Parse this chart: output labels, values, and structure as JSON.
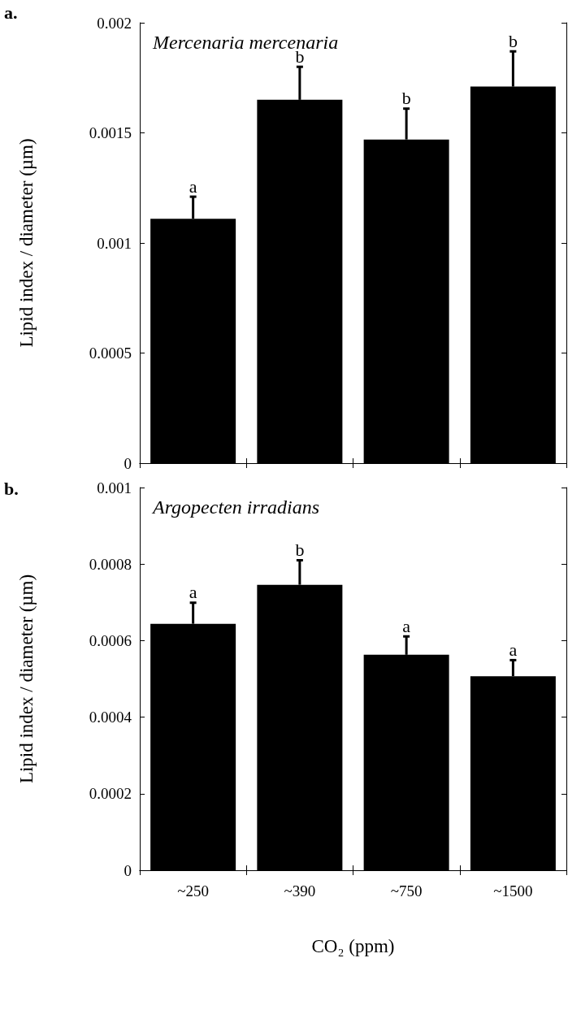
{
  "chart_data": [
    {
      "type": "bar",
      "title": "Mercenaria mercenaria",
      "ylabel": "Lipid index / diameter (µm)",
      "categories": [
        "~250",
        "~390",
        "~750",
        "~1500"
      ],
      "tick_labels": "y",
      "series": [
        {
          "color": "#000000",
          "values": [
            0.00111,
            0.00165,
            0.00147,
            0.00171
          ],
          "errors": [
            0.0001,
            0.00015,
            0.00014,
            0.00016
          ]
        }
      ],
      "ylim": [
        0,
        0.002
      ],
      "yticks": [
        0,
        0.0005,
        0.001,
        0.0015,
        0.002
      ],
      "grid": false,
      "annotations": [
        "a.",
        {
          "text": "a",
          "x": "~250",
          "y": 0.00121
        },
        {
          "text": "b",
          "x": "~390",
          "y": 0.0018
        },
        {
          "text": "b",
          "x": "~750",
          "y": 0.00161
        },
        {
          "text": "b",
          "x": "~1500",
          "y": 0.00187
        }
      ]
    },
    {
      "type": "bar",
      "title": "Argopecten irradians",
      "ylabel": "Lipid index / diameter (µm)",
      "xlabel": "CO₂ (ppm)",
      "categories": [
        "~250",
        "~390",
        "~750",
        "~1500"
      ],
      "series": [
        {
          "color": "#000000",
          "values": [
            0.000644,
            0.000746,
            0.000563,
            0.000507
          ],
          "errors": [
            5.5e-05,
            6.4e-05,
            4.8e-05,
            4.2e-05
          ]
        }
      ],
      "ylim": [
        0,
        0.001
      ],
      "yticks": [
        0,
        0.0002,
        0.0004,
        0.0006,
        0.0008,
        0.001
      ],
      "grid": false,
      "annotations": [
        "b.",
        {
          "text": "a",
          "x": "~250",
          "y": 0.0007
        },
        {
          "text": "b",
          "x": "~390",
          "y": 0.00081
        },
        {
          "text": "a",
          "x": "~750",
          "y": 0.000611
        },
        {
          "text": "a",
          "x": "~1500",
          "y": 0.000549
        }
      ]
    }
  ]
}
